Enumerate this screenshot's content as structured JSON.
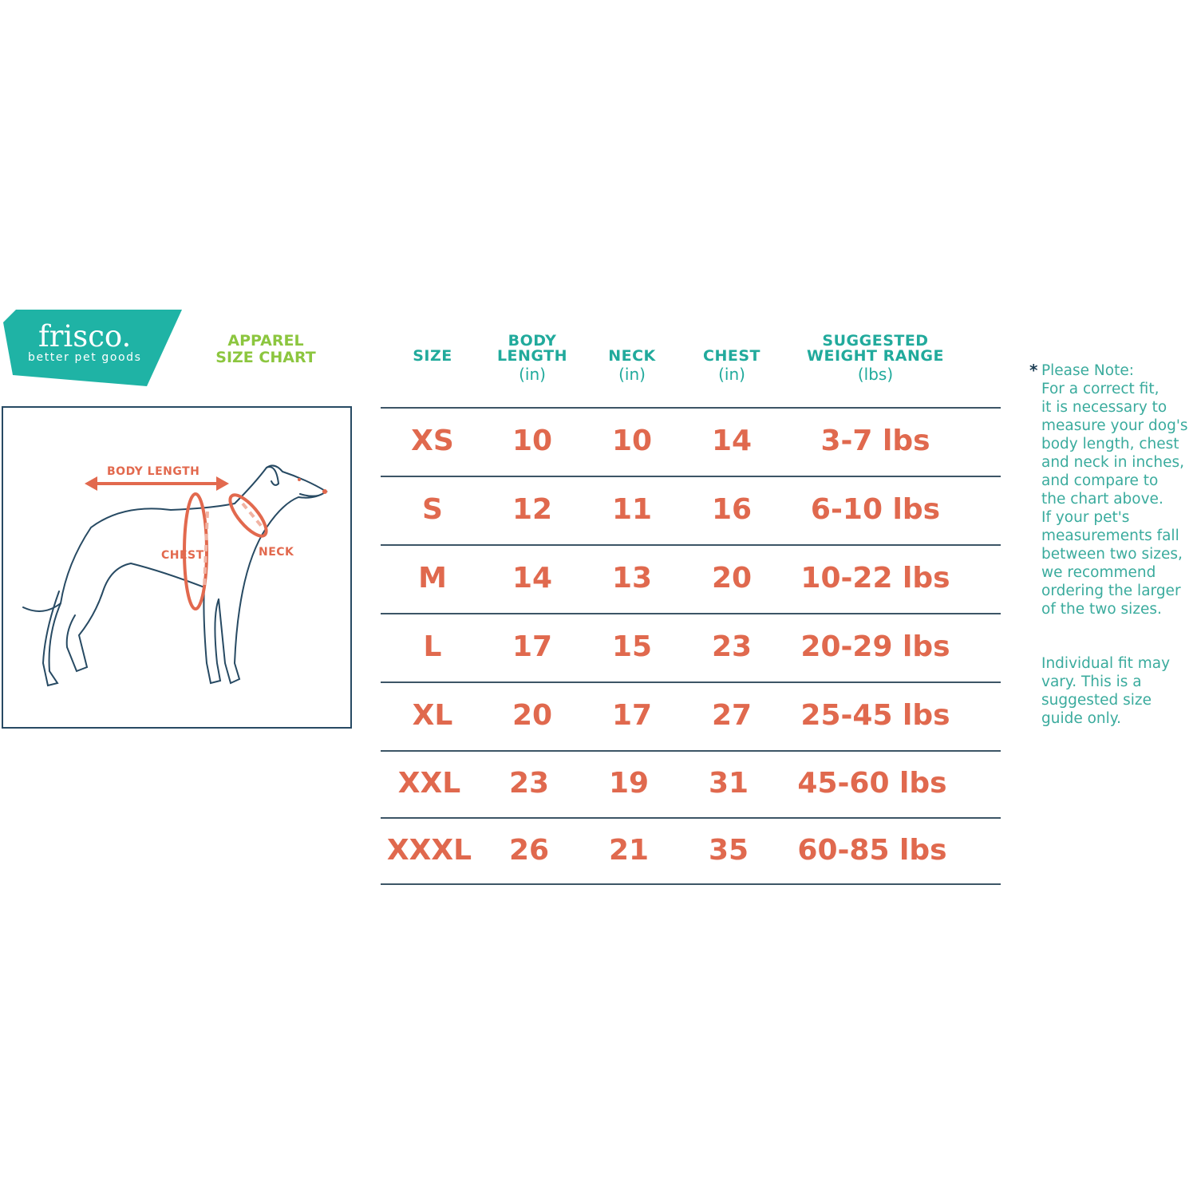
{
  "brand": {
    "name": "frisco.",
    "tagline": "better pet goods",
    "logo_color": "#1fb3a5"
  },
  "title": {
    "line1": "APPAREL",
    "line2": "SIZE  CHART",
    "color": "#8cc63f"
  },
  "diagram": {
    "labels": {
      "body_length": "BODY LENGTH",
      "chest": "CHEST",
      "neck": "NECK"
    },
    "arrow_color": "#e2694e",
    "outline_color": "#274a63"
  },
  "table": {
    "headers": [
      {
        "line1": "",
        "line2": "SIZE",
        "unit": ""
      },
      {
        "line1": "BODY",
        "line2": "LENGTH",
        "unit": "(in)"
      },
      {
        "line1": "",
        "line2": "NECK",
        "unit": "(in)"
      },
      {
        "line1": "",
        "line2": "CHEST",
        "unit": "(in)"
      },
      {
        "line1": "SUGGESTED",
        "line2": "WEIGHT RANGE",
        "unit": "(lbs)"
      }
    ],
    "rows": [
      [
        "XS",
        "10",
        "10",
        "14",
        "3-7 lbs"
      ],
      [
        "S",
        "12",
        "11",
        "16",
        "6-10 lbs"
      ],
      [
        "M",
        "14",
        "13",
        "20",
        "10-22 lbs"
      ],
      [
        "L",
        "17",
        "15",
        "23",
        "20-29 lbs"
      ],
      [
        "XL",
        "20",
        "17",
        "27",
        "25-45 lbs"
      ],
      [
        "XXL",
        "23",
        "19",
        "31",
        "45-60 lbs"
      ],
      [
        "XXXL",
        "26",
        "21",
        "35",
        "60-85 lbs"
      ]
    ],
    "header_color": "#21aa9c",
    "value_color": "#e0694e"
  },
  "note": {
    "asterisk": "*",
    "lines": [
      "Please Note:",
      "For a correct fit,",
      "it is necessary to",
      "measure your dog's",
      "body length, chest",
      "and neck in inches,",
      "and compare to",
      "the chart above.",
      "If your pet's",
      "measurements fall",
      "between two sizes,",
      "we recommend",
      "ordering the larger",
      "of the two sizes."
    ],
    "disclaimer": [
      "Individual fit may",
      "vary. This is a",
      "suggested size",
      "guide only."
    ]
  }
}
